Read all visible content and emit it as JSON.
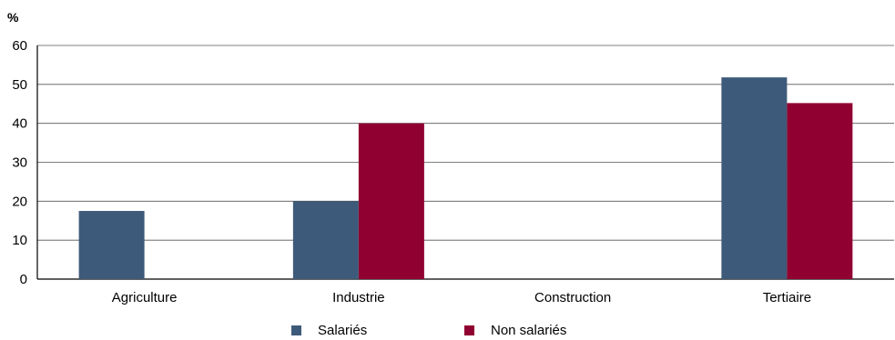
{
  "chart_data": {
    "type": "bar",
    "unit_label": "%",
    "categories": [
      "Agriculture",
      "Industrie",
      "Construction",
      "Tertiaire"
    ],
    "series": [
      {
        "name": "Salariés",
        "color": "#3d5a7a",
        "values": [
          17.5,
          20,
          0,
          51.8
        ]
      },
      {
        "name": "Non salariés",
        "color": "#900030",
        "values": [
          0,
          40,
          0,
          45.2
        ]
      }
    ],
    "ylim": [
      0,
      60
    ],
    "yticks": [
      0,
      10,
      20,
      30,
      40,
      50,
      60
    ],
    "grid": true,
    "legend_position": "bottom"
  }
}
